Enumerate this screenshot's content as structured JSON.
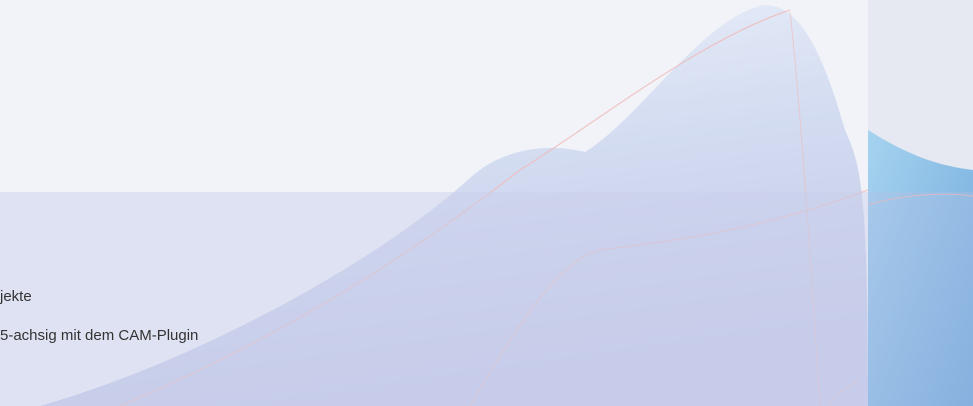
{
  "hero": {
    "lines": [
      "jekte",
      "5-achsig mit dem CAM-Plugin"
    ]
  }
}
